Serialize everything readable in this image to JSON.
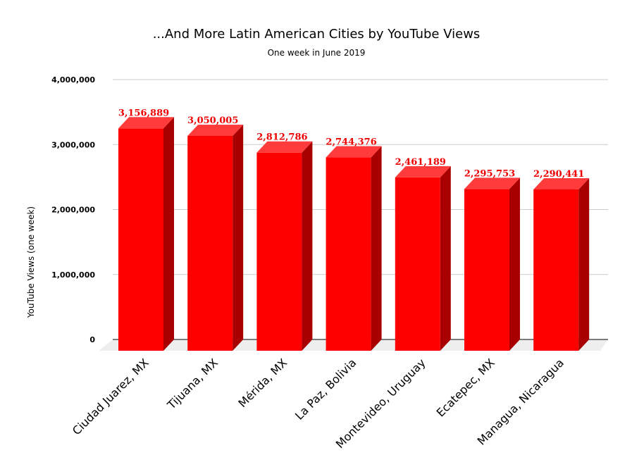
{
  "chart_data": {
    "type": "bar",
    "title": "...And More Latin American Cities by YouTube Views",
    "subtitle": "One week in June 2019",
    "xlabel": "",
    "ylabel": "YouTube Views (one week)",
    "ylim": [
      0,
      4000000
    ],
    "yticks": [
      0,
      1000000,
      2000000,
      3000000,
      4000000
    ],
    "ytick_labels": [
      "0",
      "1,000,000",
      "2,000,000",
      "3,000,000",
      "4,000,000"
    ],
    "grid": true,
    "legend": "none",
    "bar_style": "3d",
    "categories": [
      "Ciudad Juarez, MX",
      "Tijuana, MX",
      "Mérida, MX",
      "La Paz, Bolivia",
      "Montevideo, Uruguay",
      "Ecatepec, MX",
      "Managua, Nicaragua"
    ],
    "values": [
      3156889,
      3050005,
      2812786,
      2744376,
      2461189,
      2295753,
      2290441
    ],
    "data_labels": [
      "3,156,889",
      "3,050,005",
      "2,812,786",
      "2,744,376",
      "2,461,189",
      "2,295,753",
      "2,290,441"
    ],
    "colors": {
      "bar_front": "#ff0000",
      "bar_top": "#ff3b3b",
      "bar_side": "#a80000",
      "label": "#ee0000",
      "floor": "#eeeeee",
      "grid": "#cccccc"
    }
  }
}
